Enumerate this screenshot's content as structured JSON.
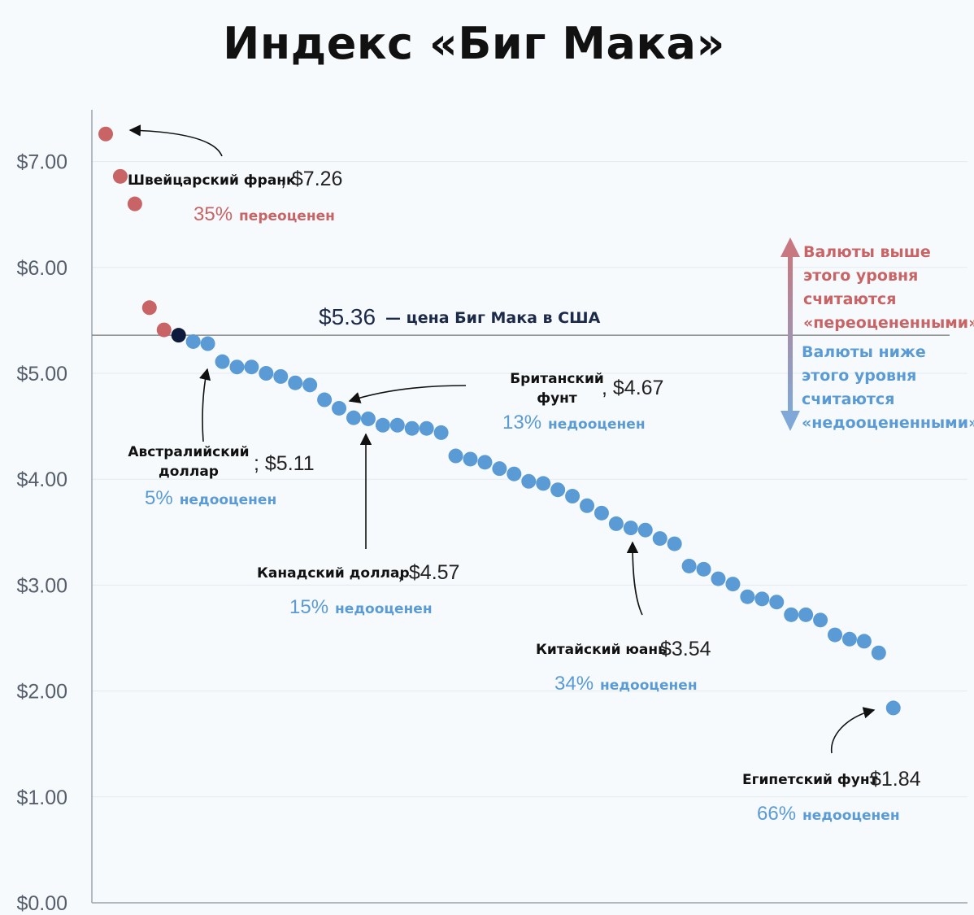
{
  "chart_data": {
    "type": "scatter",
    "title": "Индекс «Биг Мака»",
    "yticks": [
      "$0.00",
      "$1.00",
      "$2.00",
      "$3.00",
      "$4.00",
      "$5.00",
      "$6.00",
      "$7.00"
    ],
    "ylim": [
      0,
      7.5
    ],
    "grid": true,
    "colors": {
      "over": "#c86466",
      "under": "#5b9bd5",
      "us": "#0e1a3c",
      "line": "#777777",
      "arrow_top": "#c87880",
      "arrow_bottom": "#7fa8d8"
    },
    "reference": {
      "value": 5.36,
      "price_label": "$5.36",
      "text": "— цена Биг Мака в США"
    },
    "points": [
      7.26,
      6.86,
      6.6,
      5.62,
      5.41,
      5.36,
      5.3,
      5.28,
      5.11,
      5.06,
      5.06,
      5.0,
      4.97,
      4.91,
      4.89,
      4.75,
      4.67,
      4.58,
      4.57,
      4.51,
      4.51,
      4.48,
      4.48,
      4.44,
      4.22,
      4.19,
      4.16,
      4.1,
      4.05,
      3.98,
      3.96,
      3.9,
      3.84,
      3.75,
      3.68,
      3.58,
      3.54,
      3.52,
      3.44,
      3.39,
      3.18,
      3.15,
      3.06,
      3.01,
      2.89,
      2.87,
      2.84,
      2.72,
      2.72,
      2.67,
      2.53,
      2.49,
      2.47,
      2.36,
      1.84
    ],
    "point_categories": [
      "over",
      "over",
      "over",
      "over",
      "over",
      "us",
      "under",
      "under",
      "under",
      "under",
      "under",
      "under",
      "under",
      "under",
      "under",
      "under",
      "under",
      "under",
      "under",
      "under",
      "under",
      "under",
      "under",
      "under",
      "under",
      "under",
      "under",
      "under",
      "under",
      "under",
      "under",
      "under",
      "under",
      "under",
      "under",
      "under",
      "under",
      "under",
      "under",
      "under",
      "under",
      "under",
      "under",
      "under",
      "under",
      "under",
      "under",
      "under",
      "under",
      "under",
      "under",
      "under",
      "under",
      "under",
      "under"
    ],
    "annotations": [
      {
        "name_lines": [
          "Швейцарский франк"
        ],
        "price": ", $7.26",
        "pct": "35%",
        "word": "переоценен",
        "kind": "over"
      },
      {
        "name_lines": [
          "Австралийский",
          "доллар"
        ],
        "price": "; $5.11",
        "pct": "5%",
        "word": "недооценен",
        "kind": "under"
      },
      {
        "name_lines": [
          "Британский",
          "фунт"
        ],
        "price": ", $4.67",
        "pct": "13%",
        "word": "недооценен",
        "kind": "under"
      },
      {
        "name_lines": [
          "Канадский доллар"
        ],
        "price": ", $4.57",
        "pct": "15%",
        "word": "недооценен",
        "kind": "under"
      },
      {
        "name_lines": [
          "Китайский юань"
        ],
        "price": " $3.54",
        "pct": "34%",
        "word": "недооценен",
        "kind": "under"
      },
      {
        "name_lines": [
          "Египетский фунт"
        ],
        "price": " $1.84",
        "pct": "66%",
        "word": "недооценен",
        "kind": "under"
      }
    ],
    "legend": {
      "over_lines": [
        "Валюты выше",
        "этого уровня",
        "считаются",
        "«переоцененными»"
      ],
      "under_lines": [
        "Валюты ниже",
        "этого уровня",
        "считаются",
        "«недооцененными»"
      ]
    }
  }
}
